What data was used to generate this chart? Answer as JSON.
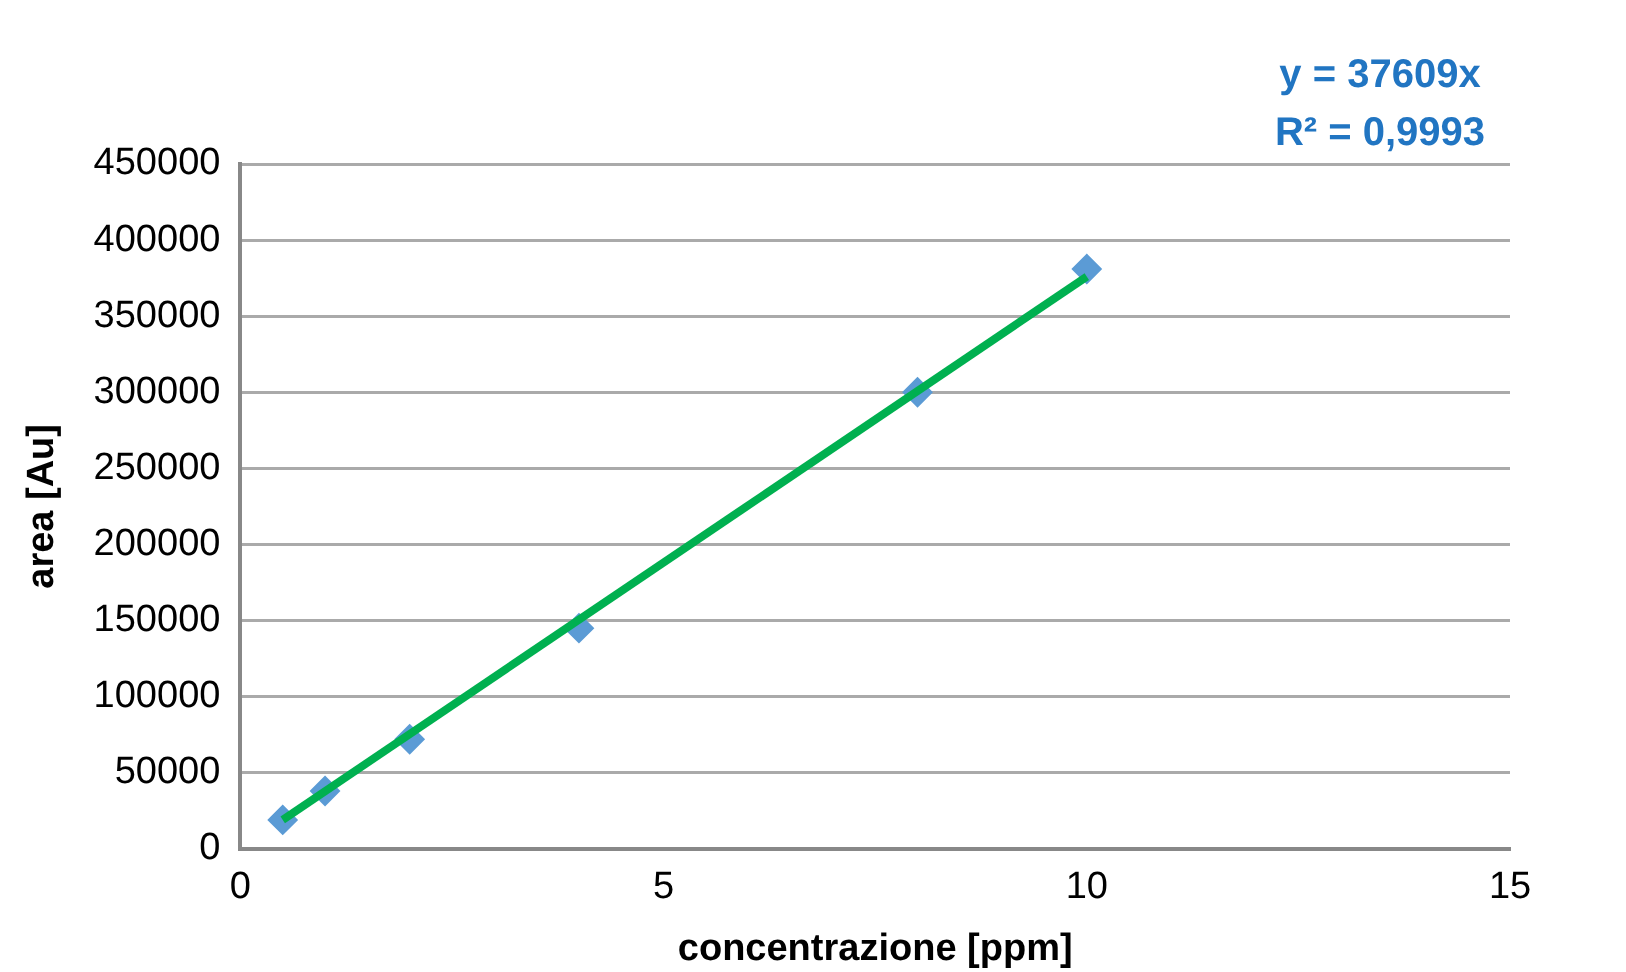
{
  "chart_data": {
    "type": "scatter",
    "xlabel": "concentrazione [ppm]",
    "ylabel": "area [Au]",
    "annotations": [
      "y = 37609x",
      "R² = 0,9993"
    ],
    "series": [
      {
        "type": "scatter",
        "color": "#5b9bd5",
        "x": [
          0.5,
          1,
          2,
          4,
          8,
          10
        ],
        "values": [
          19000,
          38000,
          72000,
          145000,
          300000,
          381000
        ],
        "marker": "diamond"
      },
      {
        "type": "line",
        "color": "#00b050",
        "x": [
          0.5,
          10
        ],
        "values": [
          19000,
          376000
        ],
        "marker": "none",
        "line_style": "solid"
      }
    ],
    "xlim": [
      0,
      15
    ],
    "xticks": [
      0,
      5,
      10,
      15
    ],
    "ylim": [
      0,
      450000
    ],
    "yticks": [
      0,
      50000,
      100000,
      150000,
      200000,
      250000,
      300000,
      350000,
      400000,
      450000
    ],
    "grid": "y",
    "legend": false
  }
}
